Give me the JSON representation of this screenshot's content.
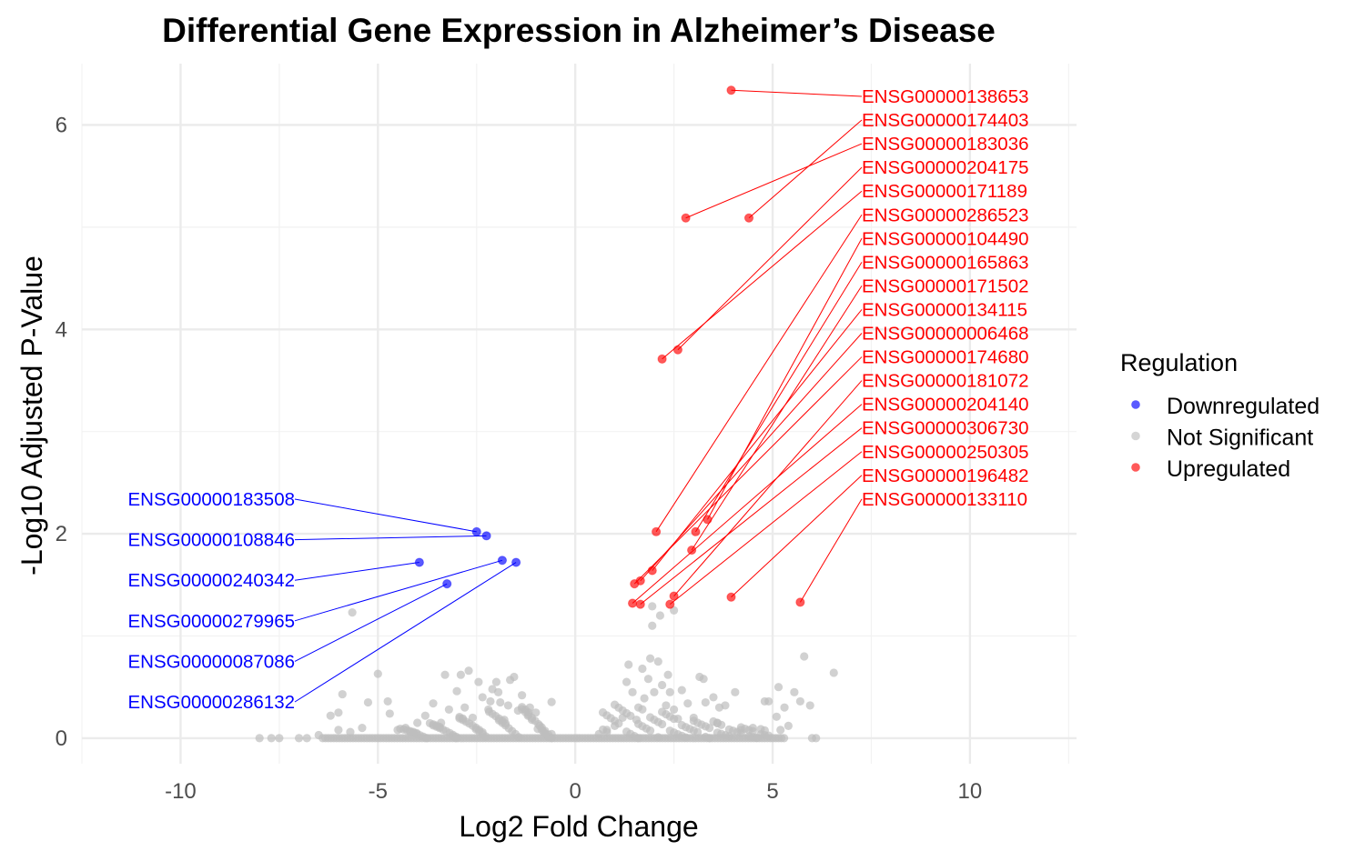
{
  "chart_data": {
    "type": "scatter",
    "title": "Differential Gene Expression in Alzheimer’s Disease",
    "xlabel": "Log2 Fold Change",
    "ylabel": "-Log10 Adjusted P-Value",
    "xlim": [
      -12.5,
      12.7
    ],
    "ylim": [
      -0.25,
      6.6
    ],
    "x_ticks": [
      -10,
      -5,
      0,
      5,
      10
    ],
    "x_tick_labels": [
      "-10",
      "-5",
      "0",
      "5",
      "10"
    ],
    "y_ticks": [
      0,
      2,
      4,
      6
    ],
    "y_tick_labels": [
      "0",
      "2",
      "4",
      "6"
    ],
    "grid": true,
    "legend": {
      "title": "Regulation",
      "position": "right",
      "entries": [
        {
          "label": "Downregulated",
          "color": "#0000ff"
        },
        {
          "label": "Not Significant",
          "color": "#bebebe"
        },
        {
          "label": "Upregulated",
          "color": "#ff0000"
        }
      ]
    },
    "colors": {
      "Downregulated": "#0000ff",
      "Not Significant": "#bebebe",
      "Upregulated": "#ff0000"
    },
    "series": [
      {
        "name": "Upregulated",
        "points": [
          {
            "x": 3.95,
            "y": 6.34,
            "label": "ENSG00000138653"
          },
          {
            "x": 4.4,
            "y": 5.09,
            "label": "ENSG00000174403"
          },
          {
            "x": 2.8,
            "y": 5.09,
            "label": "ENSG00000183036"
          },
          {
            "x": 2.6,
            "y": 3.8,
            "label": "ENSG00000204175"
          },
          {
            "x": 2.2,
            "y": 3.71,
            "label": "ENSG00000171189"
          },
          {
            "x": 2.05,
            "y": 2.02,
            "label": "ENSG00000286523"
          },
          {
            "x": 3.35,
            "y": 2.14,
            "label": "ENSG00000104490"
          },
          {
            "x": 3.05,
            "y": 2.02,
            "label": "ENSG00000165863"
          },
          {
            "x": 2.95,
            "y": 1.84,
            "label": "ENSG00000171502"
          },
          {
            "x": 1.95,
            "y": 1.64,
            "label": "ENSG00000134115"
          },
          {
            "x": 1.65,
            "y": 1.54,
            "label": "ENSG00000006468"
          },
          {
            "x": 1.5,
            "y": 1.51,
            "label": "ENSG00000174680"
          },
          {
            "x": 2.5,
            "y": 1.39,
            "label": "ENSG00000181072"
          },
          {
            "x": 1.45,
            "y": 1.32,
            "label": "ENSG00000204140"
          },
          {
            "x": 1.65,
            "y": 1.31,
            "label": "ENSG00000306730"
          },
          {
            "x": 2.4,
            "y": 1.31,
            "label": "ENSG00000250305"
          },
          {
            "x": 3.95,
            "y": 1.38,
            "label": "ENSG00000196482"
          },
          {
            "x": 5.7,
            "y": 1.33,
            "label": "ENSG00000133110"
          }
        ]
      },
      {
        "name": "Downregulated",
        "points": [
          {
            "x": -2.5,
            "y": 2.02,
            "label": "ENSG00000183508"
          },
          {
            "x": -2.25,
            "y": 1.98,
            "label": "ENSG00000108846"
          },
          {
            "x": -3.95,
            "y": 1.72,
            "label": "ENSG00000240342"
          },
          {
            "x": -1.85,
            "y": 1.74,
            "label": "ENSG00000279965"
          },
          {
            "x": -3.25,
            "y": 1.51,
            "label": "ENSG00000087086"
          },
          {
            "x": -1.5,
            "y": 1.72,
            "label": "ENSG00000286132"
          }
        ]
      },
      {
        "name": "Not Significant",
        "points": [
          {
            "x": -5.65,
            "y": 1.23
          },
          {
            "x": -5.0,
            "y": 0.63
          },
          {
            "x": -4.75,
            "y": 0.36
          },
          {
            "x": -4.7,
            "y": 0.24
          },
          {
            "x": -4.5,
            "y": 0.08
          },
          {
            "x": -4.3,
            "y": 0.1
          },
          {
            "x": -4.0,
            "y": 0.15
          },
          {
            "x": -3.8,
            "y": 0.22
          },
          {
            "x": -3.6,
            "y": 0.34
          },
          {
            "x": -3.4,
            "y": 0.15
          },
          {
            "x": -3.2,
            "y": 0.28
          },
          {
            "x": -3.0,
            "y": 0.46
          },
          {
            "x": -2.9,
            "y": 0.62
          },
          {
            "x": -2.8,
            "y": 0.3
          },
          {
            "x": -2.7,
            "y": 0.66
          },
          {
            "x": -2.6,
            "y": 0.2
          },
          {
            "x": -2.45,
            "y": 0.55
          },
          {
            "x": -2.35,
            "y": 0.4
          },
          {
            "x": -2.2,
            "y": 0.28
          },
          {
            "x": -2.1,
            "y": 0.48
          },
          {
            "x": -2.0,
            "y": 0.55
          },
          {
            "x": -1.9,
            "y": 0.35
          },
          {
            "x": -1.8,
            "y": 0.18
          },
          {
            "x": -1.7,
            "y": 0.32
          },
          {
            "x": -1.65,
            "y": 0.57
          },
          {
            "x": -1.55,
            "y": 0.6
          },
          {
            "x": -1.45,
            "y": 0.27
          },
          {
            "x": -1.35,
            "y": 0.42
          },
          {
            "x": -1.2,
            "y": 0.22
          },
          {
            "x": -1.1,
            "y": 0.18
          },
          {
            "x": -1.0,
            "y": 0.25
          },
          {
            "x": -0.9,
            "y": 0.12
          },
          {
            "x": -0.8,
            "y": 0.06
          },
          {
            "x": -0.6,
            "y": 0.04
          },
          {
            "x": -5.4,
            "y": 0.1
          },
          {
            "x": -5.7,
            "y": 0.06
          },
          {
            "x": -6.0,
            "y": 0.08
          },
          {
            "x": -6.5,
            "y": 0.03
          },
          {
            "x": -6.8,
            "y": 0.0
          },
          {
            "x": -7.0,
            "y": 0.0
          },
          {
            "x": -7.5,
            "y": 0.0
          },
          {
            "x": -7.7,
            "y": 0.0
          },
          {
            "x": -8.0,
            "y": 0.0
          },
          {
            "x": -5.25,
            "y": 0.35
          },
          {
            "x": -5.9,
            "y": 0.43
          },
          {
            "x": -6.0,
            "y": 0.25
          },
          {
            "x": -6.2,
            "y": 0.22
          },
          {
            "x": -3.3,
            "y": 0.62
          },
          {
            "x": -2.15,
            "y": 0.36
          },
          {
            "x": -1.95,
            "y": 0.45
          },
          {
            "x": -1.15,
            "y": 0.3
          },
          {
            "x": -0.95,
            "y": 0.09
          },
          {
            "x": 1.3,
            "y": 0.55
          },
          {
            "x": 1.35,
            "y": 0.72
          },
          {
            "x": 1.45,
            "y": 0.45
          },
          {
            "x": 1.6,
            "y": 0.3
          },
          {
            "x": 1.7,
            "y": 0.68
          },
          {
            "x": 1.75,
            "y": 0.39
          },
          {
            "x": 1.85,
            "y": 0.58
          },
          {
            "x": 1.9,
            "y": 0.78
          },
          {
            "x": 1.95,
            "y": 1.29
          },
          {
            "x": 1.95,
            "y": 1.1
          },
          {
            "x": 2.0,
            "y": 0.45
          },
          {
            "x": 2.1,
            "y": 0.75
          },
          {
            "x": 2.15,
            "y": 1.2
          },
          {
            "x": 2.2,
            "y": 0.52
          },
          {
            "x": 2.3,
            "y": 0.32
          },
          {
            "x": 2.4,
            "y": 0.45
          },
          {
            "x": 2.5,
            "y": 0.28
          },
          {
            "x": 2.5,
            "y": 1.25
          },
          {
            "x": 2.6,
            "y": 0.19
          },
          {
            "x": 2.7,
            "y": 0.47
          },
          {
            "x": 2.85,
            "y": 0.34
          },
          {
            "x": 3.0,
            "y": 0.2
          },
          {
            "x": 3.15,
            "y": 0.6
          },
          {
            "x": 3.25,
            "y": 0.58
          },
          {
            "x": 3.3,
            "y": 0.35
          },
          {
            "x": 3.5,
            "y": 0.4
          },
          {
            "x": 3.65,
            "y": 0.3
          },
          {
            "x": 3.8,
            "y": 0.32
          },
          {
            "x": 4.2,
            "y": 0.08
          },
          {
            "x": 4.5,
            "y": 0.1
          },
          {
            "x": 4.8,
            "y": 0.36
          },
          {
            "x": 4.9,
            "y": 0.36
          },
          {
            "x": 5.15,
            "y": 0.5
          },
          {
            "x": 5.2,
            "y": 0.08
          },
          {
            "x": 5.3,
            "y": 0.3
          },
          {
            "x": 5.4,
            "y": 0.12
          },
          {
            "x": 5.55,
            "y": 0.45
          },
          {
            "x": 5.7,
            "y": 0.36
          },
          {
            "x": 5.8,
            "y": 0.8
          },
          {
            "x": 6.0,
            "y": 0.0
          },
          {
            "x": 6.55,
            "y": 0.64
          },
          {
            "x": 5.95,
            "y": 0.32
          },
          {
            "x": 5.1,
            "y": 0.21
          },
          {
            "x": 6.1,
            "y": 0.0
          },
          {
            "x": 4.05,
            "y": 0.45
          },
          {
            "x": 0.6,
            "y": 0.04
          },
          {
            "x": 0.8,
            "y": 0.08
          },
          {
            "x": 1.0,
            "y": 0.12
          },
          {
            "x": 1.2,
            "y": 0.2
          },
          {
            "x": 3.6,
            "y": 0.15
          },
          {
            "x": 2.35,
            "y": 0.62
          },
          {
            "x": 1.55,
            "y": 0.18
          }
        ]
      }
    ],
    "labels": {
      "Upregulated": [
        "ENSG00000138653",
        "ENSG00000174403",
        "ENSG00000183036",
        "ENSG00000204175",
        "ENSG00000171189",
        "ENSG00000286523",
        "ENSG00000104490",
        "ENSG00000165863",
        "ENSG00000171502",
        "ENSG00000134115",
        "ENSG00000006468",
        "ENSG00000174680",
        "ENSG00000181072",
        "ENSG00000204140",
        "ENSG00000306730",
        "ENSG00000250305",
        "ENSG00000196482",
        "ENSG00000133110"
      ],
      "Downregulated": [
        "ENSG00000183508",
        "ENSG00000108846",
        "ENSG00000240342",
        "ENSG00000279965",
        "ENSG00000087086",
        "ENSG00000286132"
      ]
    }
  }
}
